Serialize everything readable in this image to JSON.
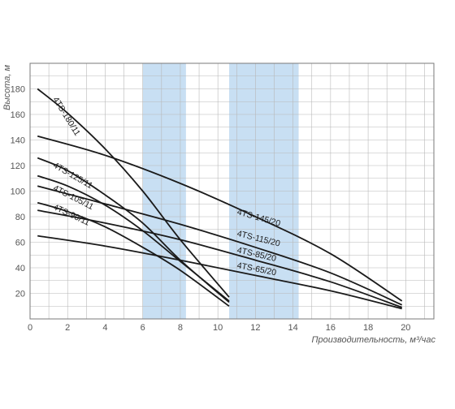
{
  "chart_data": {
    "type": "line",
    "xlabel": "Производительность, м³/час",
    "ylabel": "Высота, м",
    "xlim": [
      0,
      21.5
    ],
    "ylim": [
      0,
      200
    ],
    "xticks": [
      0,
      2,
      4,
      6,
      8,
      10,
      12,
      14,
      16,
      18,
      20
    ],
    "yticks": [
      20,
      40,
      60,
      80,
      100,
      120,
      140,
      160,
      180
    ],
    "grid": true,
    "legend": "none",
    "line_color": "#1a1a1a",
    "band_color": "#c8dff3",
    "highlight_bands": [
      {
        "x0": 6.0,
        "x1": 8.3
      },
      {
        "x0": 10.6,
        "x1": 14.3
      }
    ],
    "series": [
      {
        "name": "4TS-180/11",
        "x": [
          0.4,
          2,
          4,
          6,
          8,
          10.6
        ],
        "y": [
          180,
          161,
          133,
          100,
          62,
          17
        ],
        "label_at": [
          1.2,
          172,
          -58
        ]
      },
      {
        "name": "4TS-125/11",
        "x": [
          0.4,
          2,
          4,
          6,
          8,
          10.6
        ],
        "y": [
          126,
          116,
          97,
          75,
          46,
          13
        ],
        "label_at": [
          1.2,
          119,
          -30
        ]
      },
      {
        "name": "4TS-105/11",
        "x": [
          0.4,
          2,
          4,
          6,
          8,
          10.6
        ],
        "y": [
          112,
          104,
          89,
          69,
          45,
          14
        ],
        "label_at": [
          1.2,
          101,
          -27
        ]
      },
      {
        "name": "4TS-90/11",
        "x": [
          0.4,
          2,
          4,
          6,
          8,
          10.6
        ],
        "y": [
          91,
          84,
          72,
          56,
          38,
          10
        ],
        "label_at": [
          1.2,
          86,
          -25
        ]
      },
      {
        "name": "4TS-145/20",
        "x": [
          0.4,
          4,
          8,
          12,
          16,
          19.8
        ],
        "y": [
          143,
          128,
          106,
          80,
          51,
          14
        ],
        "label_at": [
          11.0,
          82,
          -16
        ]
      },
      {
        "name": "4TS-115/20",
        "x": [
          0.4,
          4,
          8,
          12,
          16,
          19.8
        ],
        "y": [
          104,
          90,
          74,
          56,
          36,
          11
        ],
        "label_at": [
          11.0,
          65,
          -14
        ]
      },
      {
        "name": "4TS-85/20",
        "x": [
          0.4,
          4,
          8,
          12,
          16,
          19.8
        ],
        "y": [
          85,
          75,
          62,
          46,
          29,
          9
        ],
        "label_at": [
          11.0,
          52,
          -13
        ]
      },
      {
        "name": "4TS-65/20",
        "x": [
          0.4,
          4,
          8,
          12,
          16,
          19.8
        ],
        "y": [
          65,
          57,
          46,
          34,
          22,
          8
        ],
        "label_at": [
          11.0,
          40,
          -11
        ]
      }
    ]
  }
}
